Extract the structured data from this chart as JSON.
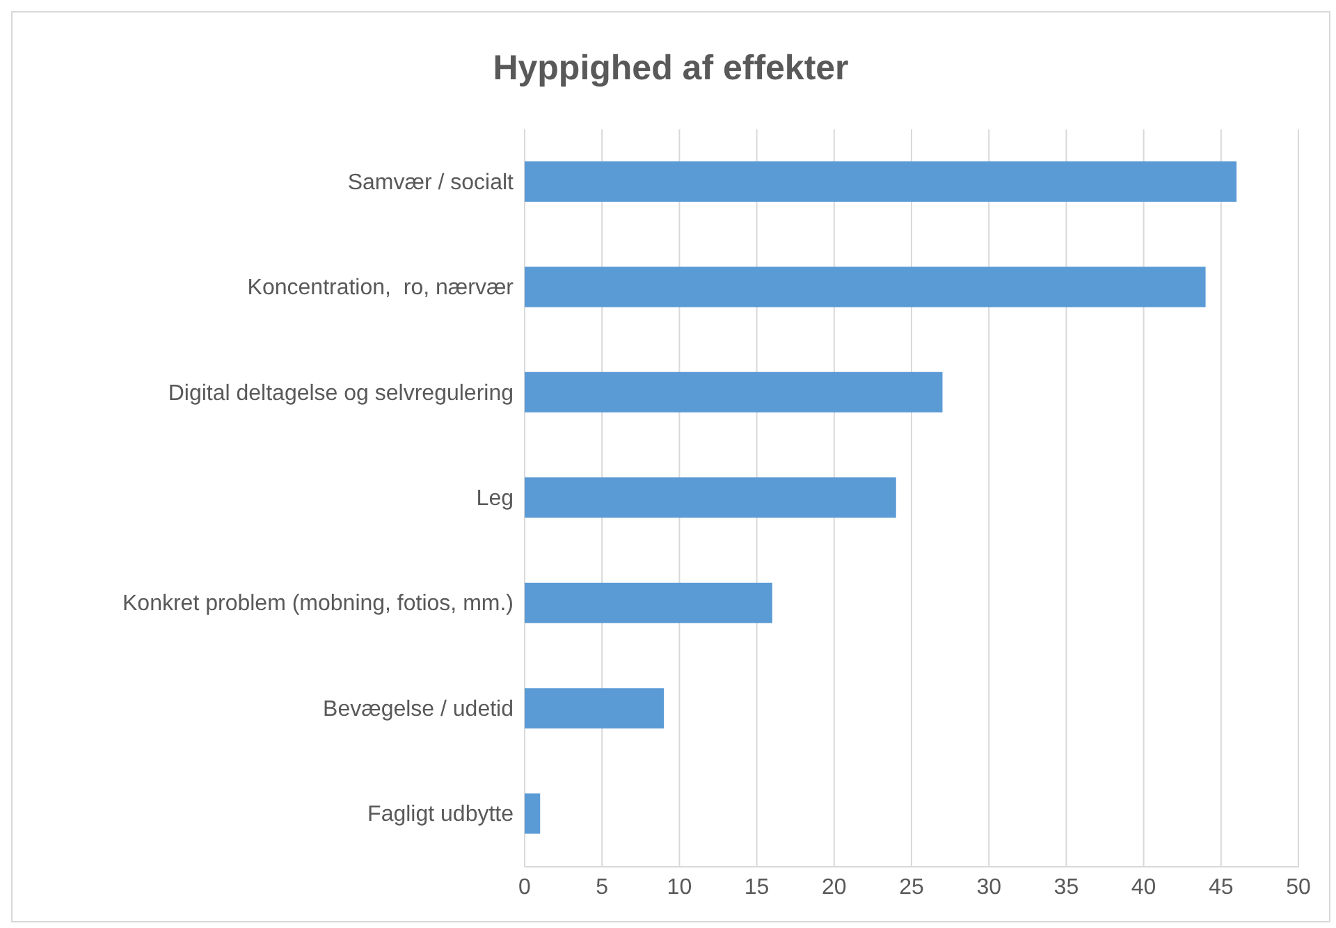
{
  "chart_data": {
    "type": "bar",
    "orientation": "horizontal",
    "title": "Hyppighed af effekter",
    "categories": [
      "Samvær / socialt",
      "Koncentration,  ro, nærvær",
      "Digital deltagelse og selvregulering",
      "Leg",
      "Konkret problem (mobning, fotios, mm.)",
      "Bevægelse / udetid",
      "Fagligt udbytte"
    ],
    "values": [
      46,
      44,
      27,
      24,
      16,
      9,
      1
    ],
    "color": "#5b9bd5",
    "xlim": [
      0,
      50
    ],
    "xticks": [
      0,
      5,
      10,
      15,
      20,
      25,
      30,
      35,
      40,
      45,
      50
    ],
    "grid": "x",
    "legend": false
  }
}
